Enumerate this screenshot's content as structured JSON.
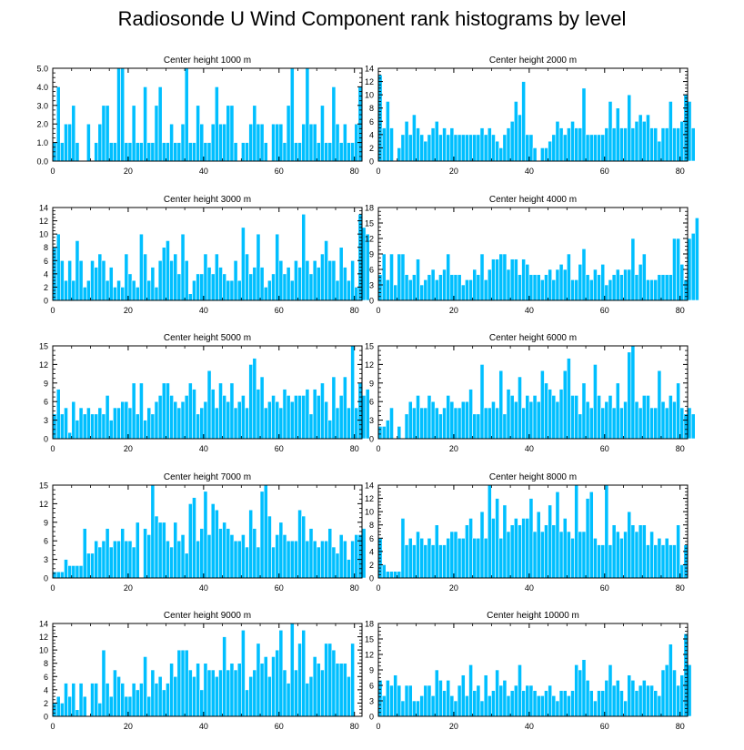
{
  "title": "Radiosonde U Wind Component rank histograms by level",
  "colors": {
    "bar": "#00bfff",
    "bar_edge": "#ffffff",
    "axis": "#000000"
  },
  "chart_data": [
    {
      "type": "bar",
      "title": "Center height 1000 m",
      "ylim": [
        0,
        5
      ],
      "yticks": [
        0,
        1,
        2,
        3,
        4,
        5
      ],
      "ytick_labels": [
        "0.0",
        "1.0",
        "2.0",
        "3.0",
        "4.0",
        "5.0"
      ],
      "xlim": [
        0,
        82
      ],
      "xticks": [
        0,
        20,
        40,
        60,
        80
      ],
      "values": [
        1,
        4,
        1,
        2,
        2,
        3,
        1,
        0,
        0,
        2,
        0,
        1,
        2,
        3,
        3,
        1,
        1,
        5,
        5,
        1,
        1,
        3,
        1,
        1,
        4,
        1,
        1,
        3,
        4,
        1,
        1,
        2,
        1,
        1,
        2,
        5,
        1,
        1,
        3,
        2,
        1,
        1,
        2,
        4,
        2,
        2,
        3,
        3,
        1,
        0,
        1,
        1,
        2,
        3,
        2,
        2,
        1,
        0,
        2,
        2,
        2,
        1,
        3,
        5,
        1,
        1,
        2,
        5,
        2,
        2,
        1,
        3,
        1,
        1,
        4,
        2,
        1,
        2,
        1,
        1,
        2,
        4
      ]
    },
    {
      "type": "bar",
      "title": "Center height 2000 m",
      "ylim": [
        0,
        14
      ],
      "yticks": [
        0,
        2,
        4,
        6,
        8,
        10,
        12,
        14
      ],
      "ytick_labels": [
        "0",
        "2",
        "4",
        "6",
        "8",
        "10",
        "12",
        "14"
      ],
      "xlim": [
        0,
        82
      ],
      "xticks": [
        0,
        20,
        40,
        60,
        80
      ],
      "values": [
        13,
        5,
        9,
        5,
        0,
        2,
        4,
        6,
        4,
        7,
        5,
        4,
        3,
        4,
        5,
        6,
        4,
        5,
        4,
        5,
        4,
        4,
        4,
        4,
        4,
        4,
        4,
        5,
        4,
        5,
        4,
        3,
        2,
        4,
        5,
        6,
        9,
        7,
        12,
        4,
        4,
        2,
        0,
        2,
        2,
        3,
        4,
        6,
        5,
        4,
        5,
        6,
        5,
        5,
        11,
        4,
        4,
        4,
        4,
        4,
        5,
        9,
        5,
        8,
        5,
        5,
        10,
        5,
        6,
        7,
        6,
        7,
        5,
        5,
        3,
        5,
        5,
        9,
        5,
        5,
        6,
        10,
        9,
        5
      ]
    },
    {
      "type": "bar",
      "title": "Center height 3000 m",
      "ylim": [
        0,
        14
      ],
      "yticks": [
        0,
        2,
        4,
        6,
        8,
        10,
        12,
        14
      ],
      "ytick_labels": [
        "0",
        "2",
        "4",
        "6",
        "8",
        "10",
        "12",
        "14"
      ],
      "xlim": [
        0,
        82
      ],
      "xticks": [
        0,
        20,
        40,
        60,
        80
      ],
      "values": [
        8,
        10,
        6,
        3,
        6,
        3,
        9,
        6,
        2,
        3,
        6,
        5,
        7,
        6,
        3,
        5,
        2,
        3,
        2,
        7,
        4,
        3,
        2,
        10,
        7,
        3,
        5,
        2,
        6,
        8,
        9,
        6,
        7,
        4,
        10,
        6,
        1,
        3,
        4,
        4,
        7,
        5,
        4,
        7,
        5,
        4,
        3,
        3,
        6,
        3,
        11,
        7,
        4,
        5,
        10,
        5,
        2,
        3,
        4,
        10,
        6,
        4,
        5,
        3,
        6,
        5,
        13,
        6,
        4,
        6,
        5,
        7,
        9,
        6,
        6,
        3,
        8,
        5,
        3,
        6,
        2,
        13,
        11,
        10
      ]
    },
    {
      "type": "bar",
      "title": "Center height 4000 m",
      "ylim": [
        0,
        18
      ],
      "yticks": [
        0,
        3,
        6,
        9,
        12,
        15,
        18
      ],
      "ytick_labels": [
        "0",
        "3",
        "6",
        "9",
        "12",
        "15",
        "18"
      ],
      "xlim": [
        0,
        82
      ],
      "xticks": [
        0,
        20,
        40,
        60,
        80
      ],
      "values": [
        5,
        9,
        4,
        9,
        3,
        9,
        9,
        5,
        4,
        5,
        8,
        3,
        4,
        5,
        6,
        4,
        5,
        6,
        9,
        5,
        5,
        5,
        3,
        4,
        4,
        6,
        5,
        9,
        4,
        6,
        8,
        8,
        9,
        9,
        6,
        8,
        8,
        5,
        8,
        7,
        5,
        5,
        5,
        4,
        5,
        6,
        4,
        6,
        7,
        6,
        9,
        4,
        4,
        7,
        10,
        5,
        4,
        6,
        5,
        7,
        3,
        4,
        5,
        6,
        5,
        6,
        6,
        12,
        5,
        7,
        9,
        4,
        4,
        4,
        5,
        5,
        5,
        5,
        12,
        12,
        7,
        4,
        12,
        13,
        16
      ]
    },
    {
      "type": "bar",
      "title": "Center height 5000 m",
      "ylim": [
        0,
        15
      ],
      "yticks": [
        0,
        3,
        6,
        9,
        12,
        15
      ],
      "ytick_labels": [
        "0",
        "3",
        "6",
        "9",
        "12",
        "15"
      ],
      "xlim": [
        0,
        82
      ],
      "xticks": [
        0,
        20,
        40,
        60,
        80
      ],
      "values": [
        4,
        8,
        4,
        5,
        1,
        6,
        3,
        5,
        4,
        5,
        4,
        4,
        5,
        4,
        7,
        3,
        5,
        5,
        6,
        6,
        5,
        9,
        4,
        9,
        3,
        5,
        4,
        6,
        7,
        9,
        9,
        7,
        6,
        5,
        6,
        7,
        9,
        8,
        4,
        5,
        6,
        11,
        8,
        5,
        9,
        7,
        6,
        9,
        5,
        6,
        7,
        5,
        12,
        13,
        8,
        10,
        5,
        6,
        7,
        6,
        5,
        8,
        7,
        6,
        7,
        7,
        7,
        8,
        4,
        8,
        7,
        9,
        6,
        3,
        10,
        5,
        7,
        10,
        5,
        15,
        5,
        9,
        7,
        8
      ]
    },
    {
      "type": "bar",
      "title": "Center height 6000 m",
      "ylim": [
        0,
        15
      ],
      "yticks": [
        0,
        3,
        6,
        9,
        12,
        15
      ],
      "ytick_labels": [
        "0",
        "3",
        "6",
        "9",
        "12",
        "15"
      ],
      "xlim": [
        0,
        82
      ],
      "xticks": [
        0,
        20,
        40,
        60,
        80
      ],
      "values": [
        2,
        2,
        3,
        5,
        0,
        2,
        0,
        4,
        6,
        5,
        7,
        5,
        5,
        7,
        6,
        5,
        4,
        5,
        7,
        6,
        5,
        5,
        6,
        6,
        8,
        4,
        4,
        12,
        5,
        5,
        6,
        5,
        11,
        4,
        8,
        7,
        6,
        10,
        5,
        7,
        6,
        7,
        6,
        11,
        9,
        8,
        7,
        6,
        8,
        11,
        13,
        7,
        7,
        4,
        9,
        6,
        5,
        12,
        7,
        5,
        6,
        7,
        5,
        9,
        5,
        6,
        14,
        15,
        6,
        5,
        7,
        7,
        5,
        5,
        11,
        6,
        5,
        7,
        6,
        9,
        5,
        4,
        5,
        4
      ]
    },
    {
      "type": "bar",
      "title": "Center height 7000 m",
      "ylim": [
        0,
        15
      ],
      "yticks": [
        0,
        3,
        6,
        9,
        12,
        15
      ],
      "ytick_labels": [
        "0",
        "3",
        "6",
        "9",
        "12",
        "15"
      ],
      "xlim": [
        0,
        82
      ],
      "xticks": [
        0,
        20,
        40,
        60,
        80
      ],
      "values": [
        1,
        1,
        1,
        3,
        2,
        2,
        2,
        2,
        8,
        4,
        4,
        6,
        5,
        6,
        8,
        5,
        6,
        6,
        8,
        6,
        6,
        5,
        9,
        0,
        8,
        7,
        15,
        10,
        9,
        9,
        6,
        5,
        9,
        6,
        7,
        4,
        12,
        13,
        6,
        8,
        14,
        7,
        12,
        11,
        8,
        9,
        8,
        7,
        6,
        6,
        7,
        5,
        11,
        8,
        5,
        14,
        15,
        10,
        5,
        7,
        9,
        7,
        6,
        6,
        6,
        11,
        10,
        6,
        8,
        6,
        5,
        6,
        6,
        8,
        5,
        4,
        7,
        6,
        3,
        6,
        7,
        7,
        8
      ]
    },
    {
      "type": "bar",
      "title": "Center height 8000 m",
      "ylim": [
        0,
        14
      ],
      "yticks": [
        0,
        2,
        4,
        6,
        8,
        10,
        12,
        14
      ],
      "ytick_labels": [
        "0",
        "2",
        "4",
        "6",
        "8",
        "10",
        "12",
        "14"
      ],
      "xlim": [
        0,
        82
      ],
      "xticks": [
        0,
        20,
        40,
        60,
        80
      ],
      "values": [
        6,
        2,
        1,
        1,
        1,
        1,
        9,
        5,
        6,
        5,
        7,
        6,
        5,
        6,
        5,
        8,
        5,
        5,
        6,
        7,
        7,
        6,
        6,
        8,
        9,
        6,
        6,
        10,
        6,
        14,
        9,
        12,
        6,
        11,
        7,
        8,
        9,
        8,
        9,
        9,
        12,
        7,
        10,
        7,
        8,
        11,
        8,
        13,
        7,
        9,
        7,
        6,
        14,
        7,
        7,
        12,
        13,
        6,
        5,
        5,
        14,
        5,
        8,
        7,
        6,
        7,
        10,
        8,
        7,
        8,
        8,
        5,
        7,
        5,
        6,
        5,
        6,
        5,
        5,
        8,
        2,
        5
      ]
    },
    {
      "type": "bar",
      "title": "Center height 9000 m",
      "ylim": [
        0,
        14
      ],
      "yticks": [
        0,
        2,
        4,
        6,
        8,
        10,
        12,
        14
      ],
      "ytick_labels": [
        "0",
        "2",
        "4",
        "6",
        "8",
        "10",
        "12",
        "14"
      ],
      "xlim": [
        0,
        82
      ],
      "xticks": [
        0,
        20,
        40,
        60,
        80
      ],
      "values": [
        2,
        3,
        2,
        5,
        3,
        5,
        1,
        5,
        3,
        0,
        5,
        5,
        2,
        10,
        5,
        3,
        7,
        6,
        5,
        3,
        3,
        5,
        4,
        5,
        9,
        3,
        7,
        5,
        6,
        4,
        5,
        8,
        6,
        10,
        10,
        10,
        7,
        6,
        8,
        4,
        8,
        7,
        7,
        6,
        7,
        12,
        7,
        8,
        7,
        8,
        13,
        4,
        6,
        7,
        11,
        8,
        9,
        6,
        9,
        10,
        13,
        7,
        5,
        14,
        7,
        11,
        13,
        5,
        6,
        9,
        8,
        7,
        11,
        11,
        10,
        8,
        8,
        8,
        6,
        11
      ]
    },
    {
      "type": "bar",
      "title": "Center height 10000 m",
      "ylim": [
        0,
        18
      ],
      "yticks": [
        0,
        3,
        6,
        9,
        12,
        15,
        18
      ],
      "ytick_labels": [
        "0",
        "3",
        "6",
        "9",
        "12",
        "15",
        "18"
      ],
      "xlim": [
        0,
        82
      ],
      "xticks": [
        0,
        20,
        40,
        60,
        80
      ],
      "values": [
        7,
        4,
        7,
        6,
        8,
        6,
        3,
        6,
        6,
        3,
        3,
        4,
        6,
        6,
        4,
        9,
        7,
        5,
        7,
        4,
        3,
        6,
        8,
        4,
        10,
        5,
        6,
        3,
        8,
        4,
        5,
        9,
        6,
        7,
        4,
        5,
        6,
        10,
        5,
        6,
        6,
        5,
        4,
        4,
        5,
        6,
        4,
        3,
        5,
        5,
        4,
        5,
        10,
        9,
        11,
        7,
        5,
        3,
        5,
        5,
        7,
        10,
        6,
        7,
        5,
        3,
        8,
        7,
        5,
        6,
        7,
        6,
        6,
        5,
        4,
        9,
        10,
        14,
        9,
        6,
        8,
        16,
        10
      ]
    }
  ]
}
